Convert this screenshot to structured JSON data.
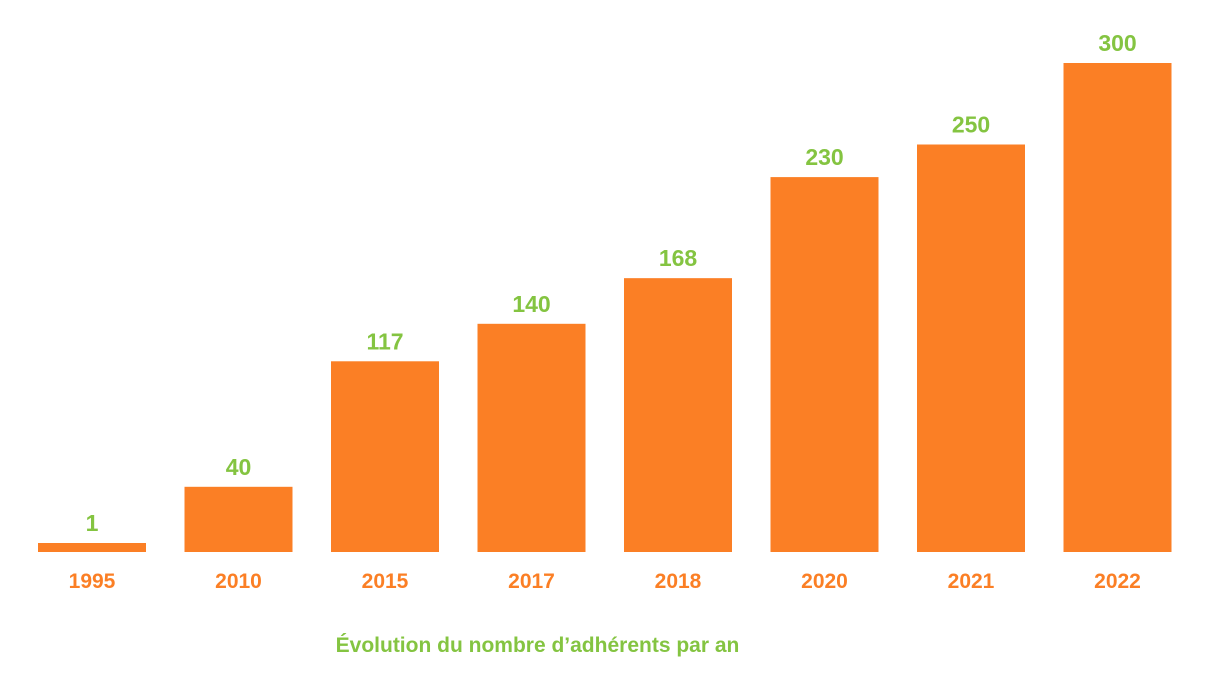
{
  "chart_data": {
    "type": "bar",
    "categories": [
      "1995",
      "2010",
      "2015",
      "2017",
      "2018",
      "2020",
      "2021",
      "2022"
    ],
    "values": [
      1,
      40,
      117,
      140,
      168,
      230,
      250,
      300
    ],
    "title": "Évolution du nombre d’adhérents par an",
    "xlabel": "",
    "ylabel": "",
    "ylim": [
      0,
      300
    ],
    "grid": false,
    "legend": "none",
    "data_labels": true
  },
  "colors": {
    "bar": "#fb7f25",
    "value_label": "#84c441",
    "tick_label": "#fb7f25",
    "caption": "#84c441",
    "background": "#ffffff"
  }
}
